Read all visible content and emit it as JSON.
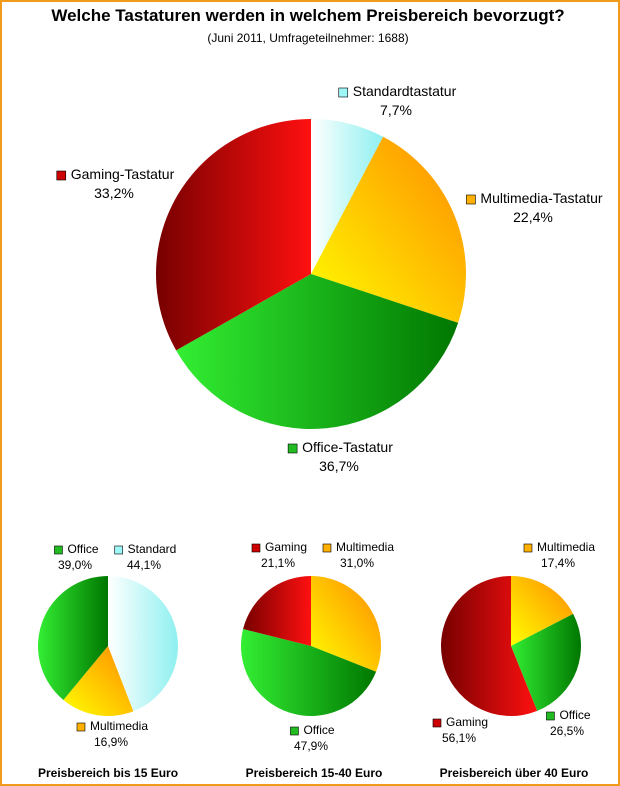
{
  "title": "Welche Tastaturen werden in welchem Preisbereich bevorzugt?",
  "subtitle": "(Juni 2011, Umfrageteilnehmer: 1688)",
  "colors": {
    "border": "#f29a1a",
    "standard": "#9ef6f6",
    "multimedia": "#ffb000",
    "office": "#22bb22",
    "gaming": "#cc0000"
  },
  "chart_data": [
    {
      "type": "pie",
      "title": "",
      "slices": [
        {
          "key": "standard",
          "label": "Standardtastatur",
          "value": 7.7,
          "display": "7,7%"
        },
        {
          "key": "multimedia",
          "label": "Multimedia-Tastatur",
          "value": 22.4,
          "display": "22,4%"
        },
        {
          "key": "office",
          "label": "Office-Tastatur",
          "value": 36.7,
          "display": "36,7%"
        },
        {
          "key": "gaming",
          "label": "Gaming-Tastatur",
          "value": 33.2,
          "display": "33,2%"
        }
      ]
    },
    {
      "type": "pie",
      "title": "Preisbereich bis 15 Euro",
      "slices": [
        {
          "key": "standard",
          "label": "Standard",
          "value": 44.1,
          "display": "44,1%"
        },
        {
          "key": "multimedia",
          "label": "Multimedia",
          "value": 16.9,
          "display": "16,9%"
        },
        {
          "key": "office",
          "label": "Office",
          "value": 39.0,
          "display": "39,0%"
        }
      ]
    },
    {
      "type": "pie",
      "title": "Preisbereich 15-40 Euro",
      "slices": [
        {
          "key": "multimedia",
          "label": "Multimedia",
          "value": 31.0,
          "display": "31,0%"
        },
        {
          "key": "office",
          "label": "Office",
          "value": 47.9,
          "display": "47,9%"
        },
        {
          "key": "gaming",
          "label": "Gaming",
          "value": 21.1,
          "display": "21,1%"
        }
      ]
    },
    {
      "type": "pie",
      "title": "Preisbereich über 40 Euro",
      "slices": [
        {
          "key": "multimedia",
          "label": "Multimedia",
          "value": 17.4,
          "display": "17,4%"
        },
        {
          "key": "office",
          "label": "Office",
          "value": 26.5,
          "display": "26,5%"
        },
        {
          "key": "gaming",
          "label": "Gaming",
          "value": 56.1,
          "display": "56,1%"
        }
      ]
    }
  ]
}
